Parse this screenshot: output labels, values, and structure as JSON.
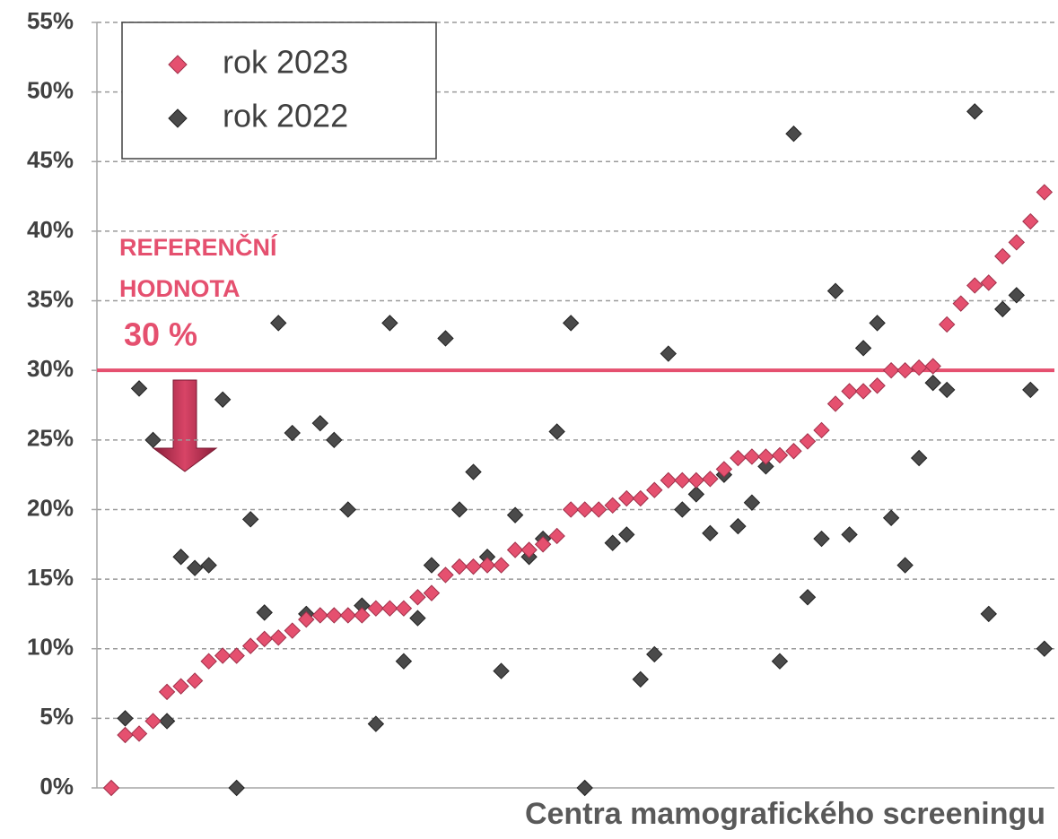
{
  "chart_data": {
    "type": "scatter",
    "xlabel": "Centra mamografického screeningu",
    "ylim": [
      0,
      55
    ],
    "yticks": [
      {
        "value": 0,
        "label": "0%"
      },
      {
        "value": 5,
        "label": "5%"
      },
      {
        "value": 10,
        "label": "10%"
      },
      {
        "value": 15,
        "label": "15%"
      },
      {
        "value": 20,
        "label": "20%"
      },
      {
        "value": 25,
        "label": "25%"
      },
      {
        "value": 30,
        "label": "30%"
      },
      {
        "value": 35,
        "label": "35%"
      },
      {
        "value": 40,
        "label": "40%"
      },
      {
        "value": 45,
        "label": "45%"
      },
      {
        "value": 50,
        "label": "50%"
      },
      {
        "value": 55,
        "label": "55%"
      }
    ],
    "grid": true,
    "legend": "upper left",
    "reference_line": {
      "value": 30,
      "color": "#e5506f",
      "label_lines": [
        "REFERENČNÍ",
        "HODNOTA"
      ],
      "value_label": "30 %"
    },
    "series": [
      {
        "name": "rok 2023",
        "color": "#e5506f",
        "values": [
          0,
          3.8,
          3.9,
          4.8,
          6.9,
          7.3,
          7.7,
          9.1,
          9.5,
          9.5,
          10.2,
          10.7,
          10.8,
          11.3,
          12.1,
          12.4,
          12.4,
          12.4,
          12.4,
          12.9,
          12.9,
          12.9,
          13.7,
          14.0,
          15.3,
          15.9,
          15.9,
          16.0,
          16.0,
          17.1,
          17.1,
          17.5,
          18.1,
          20.0,
          20.0,
          20.0,
          20.3,
          20.8,
          20.8,
          21.4,
          22.1,
          22.1,
          22.1,
          22.2,
          22.9,
          23.7,
          23.8,
          23.8,
          23.9,
          24.2,
          24.9,
          25.7,
          27.6,
          28.5,
          28.5,
          28.9,
          30.0,
          30.0,
          30.2,
          30.3,
          33.3,
          34.8,
          36.1,
          36.3,
          38.2,
          39.2,
          40.7,
          42.8
        ]
      },
      {
        "name": "rok 2022",
        "color": "#4a4a4a",
        "values": [
          null,
          5.0,
          28.7,
          25.0,
          4.8,
          16.6,
          15.8,
          16.0,
          27.9,
          0,
          19.3,
          12.6,
          33.4,
          25.5,
          12.5,
          26.2,
          25.0,
          20.0,
          13.1,
          4.6,
          33.4,
          9.1,
          12.2,
          16.0,
          32.3,
          20.0,
          22.7,
          16.6,
          8.4,
          19.6,
          16.6,
          17.9,
          25.6,
          33.4,
          0,
          null,
          17.6,
          18.2,
          7.8,
          9.6,
          31.2,
          20.0,
          21.1,
          18.3,
          22.5,
          18.8,
          20.5,
          23.1,
          9.1,
          47.0,
          13.7,
          17.9,
          35.7,
          18.2,
          31.6,
          33.4,
          19.4,
          16.0,
          23.7,
          29.1,
          28.6,
          null,
          48.6,
          12.5,
          34.4,
          35.4,
          28.6,
          10.0
        ]
      }
    ]
  }
}
